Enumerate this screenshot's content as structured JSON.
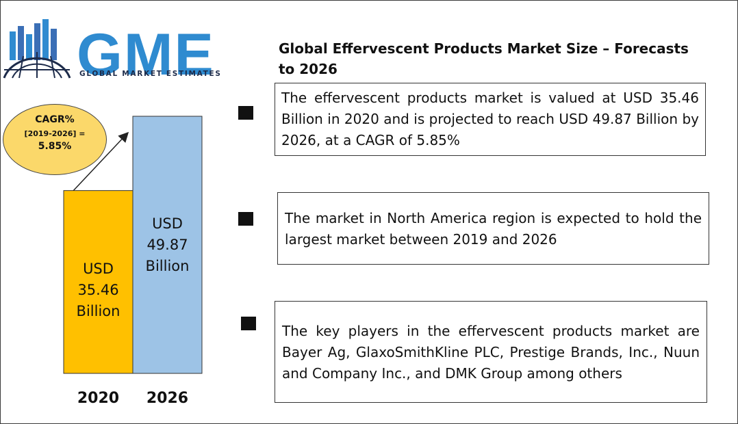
{
  "logo": {
    "brand": "GME",
    "tagline": "GLOBAL MARKET ESTIMATES"
  },
  "title": "Global Effervescent Products Market Size – Forecasts to 2026",
  "cagr": {
    "line1": "CAGR%",
    "line2": "[2019-2026] =",
    "line3": "5.85%"
  },
  "chart_data": {
    "type": "bar",
    "categories": [
      "2020",
      "2026"
    ],
    "values": [
      35.46,
      49.87
    ],
    "value_labels": [
      [
        "USD",
        "35.46",
        "Billion"
      ],
      [
        "USD",
        "49.87",
        "Billion"
      ]
    ],
    "colors": [
      "#ffc000",
      "#9dc3e6"
    ],
    "title": "",
    "xlabel": "",
    "ylabel": "",
    "ylim": [
      0,
      49.87
    ],
    "grid": false
  },
  "info_boxes": [
    {
      "text": "The effervescent products market is valued at USD 35.46 Billion in 2020 and is projected to reach USD 49.87 Billion by 2026, at a CAGR of 5.85%"
    },
    {
      "text": "The market in North America region is expected to hold the largest market between 2019 and 2026"
    },
    {
      "text": "The key players in the effervescent products market are Bayer Ag, GlaxoSmithKline PLC, Prestige Brands, Inc., Nuun and Company Inc., and DMK Group among others"
    }
  ],
  "colors": {
    "bar_2020": "#ffc000",
    "bar_2026": "#9dc3e6",
    "cagr_circle": "#fbd86a",
    "logo_blue": "#2f8bd0",
    "logo_dark": "#1d2b4a"
  }
}
